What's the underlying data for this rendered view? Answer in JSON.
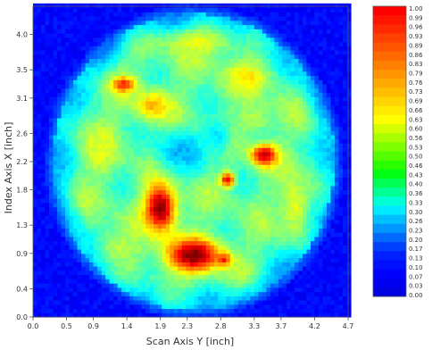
{
  "chart_data": {
    "type": "heatmap",
    "xlabel": "Scan Axis Y [inch]",
    "ylabel": "Index Axis X [inch]",
    "xlim": [
      0.0,
      4.7
    ],
    "ylim": [
      0.0,
      4.4
    ],
    "x_ticks": [
      "0.0",
      "0.5",
      "0.9",
      "1.4",
      "1.9",
      "2.3",
      "2.8",
      "3.3",
      "3.7",
      "4.2",
      "4.7"
    ],
    "y_ticks": [
      "0.0",
      "0.4",
      "0.9",
      "1.3",
      "1.8",
      "2.2",
      "2.6",
      "3.1",
      "3.5",
      "4.0"
    ],
    "grid": false,
    "background_color": "#0a14ff",
    "colorbar": {
      "placement": "right",
      "min": 0.0,
      "max": 1.0,
      "labels": [
        "1.00",
        "0.99",
        "0.96",
        "0.93",
        "0.89",
        "0.86",
        "0.83",
        "0.79",
        "0.76",
        "0.73",
        "0.69",
        "0.66",
        "0.63",
        "0.60",
        "0.56",
        "0.53",
        "0.50",
        "0.46",
        "0.43",
        "0.40",
        "0.36",
        "0.33",
        "0.30",
        "0.26",
        "0.23",
        "0.20",
        "0.17",
        "0.13",
        "0.10",
        "0.07",
        "0.03",
        "0.00"
      ],
      "colors": [
        "#ff0000",
        "#ff1500",
        "#ff2a00",
        "#ff4000",
        "#ff5500",
        "#ff6a00",
        "#ff8000",
        "#ff9500",
        "#ffaa00",
        "#ffbf00",
        "#ffd400",
        "#ffea00",
        "#ffff00",
        "#d4ff00",
        "#aaff00",
        "#80ff00",
        "#55ff00",
        "#2aff00",
        "#00ff15",
        "#00ff55",
        "#00ff95",
        "#00ffd4",
        "#00eaff",
        "#00bfff",
        "#0095ff",
        "#006aff",
        "#0040ff",
        "#0020ff",
        "#0010ff",
        "#0000ff",
        "#0000f0",
        "#0000e0"
      ]
    },
    "scan_region": {
      "shape": "circle",
      "center": [
        2.4,
        2.2
      ],
      "radius": 2.1,
      "edge_value": 0.3,
      "interior_base_value": 0.48
    },
    "hotspots": [
      {
        "x": 1.9,
        "y": 1.55,
        "value": 1.0,
        "rx": 0.22,
        "ry": 0.32
      },
      {
        "x": 2.4,
        "y": 0.88,
        "value": 1.0,
        "rx": 0.38,
        "ry": 0.22
      },
      {
        "x": 3.45,
        "y": 2.3,
        "value": 0.95,
        "rx": 0.18,
        "ry": 0.14
      },
      {
        "x": 2.9,
        "y": 1.95,
        "value": 0.9,
        "rx": 0.1,
        "ry": 0.1
      },
      {
        "x": 1.35,
        "y": 3.3,
        "value": 0.85,
        "rx": 0.16,
        "ry": 0.1
      },
      {
        "x": 2.85,
        "y": 0.82,
        "value": 0.85,
        "rx": 0.1,
        "ry": 0.08
      },
      {
        "x": 1.8,
        "y": 3.0,
        "value": 0.7,
        "rx": 0.25,
        "ry": 0.2
      },
      {
        "x": 3.2,
        "y": 3.4,
        "value": 0.65,
        "rx": 0.3,
        "ry": 0.2
      },
      {
        "x": 1.0,
        "y": 2.4,
        "value": 0.6,
        "rx": 0.22,
        "ry": 0.35
      },
      {
        "x": 3.9,
        "y": 1.6,
        "value": 0.6,
        "rx": 0.2,
        "ry": 0.4
      },
      {
        "x": 2.5,
        "y": 3.9,
        "value": 0.6,
        "rx": 0.45,
        "ry": 0.18
      },
      {
        "x": 1.3,
        "y": 1.0,
        "value": 0.55,
        "rx": 0.3,
        "ry": 0.25
      },
      {
        "x": 3.3,
        "y": 2.8,
        "value": 0.55,
        "rx": 0.25,
        "ry": 0.2
      },
      {
        "x": 2.2,
        "y": 2.35,
        "value": 0.3,
        "rx": 0.35,
        "ry": 0.3
      },
      {
        "x": 2.75,
        "y": 2.55,
        "value": 0.35,
        "rx": 0.2,
        "ry": 0.25
      }
    ]
  }
}
